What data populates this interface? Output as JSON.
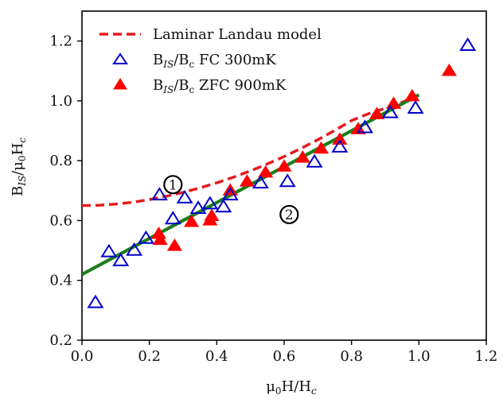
{
  "chart_data": {
    "type": "scatter",
    "xlabel": "μ₀H/H꜀",
    "ylabel": "B_IS/μ₀H꜀",
    "xlim": [
      0.0,
      1.2
    ],
    "ylim": [
      0.2,
      1.3
    ],
    "x_ticks": [
      "0.0",
      "0.2",
      "0.4",
      "0.6",
      "0.8",
      "1.0",
      "1.2"
    ],
    "y_ticks": [
      "0.2",
      "0.4",
      "0.6",
      "0.8",
      "1.0",
      "1.2"
    ],
    "grid": false,
    "legend_position": "top-left",
    "colors": {
      "model": "#e41a1c",
      "fc": "#0000cc",
      "zfc": "#ff0000",
      "fit": "#1a7f1a"
    },
    "series": [
      {
        "name": "Laminar Landau model",
        "kind": "dashed-line",
        "x": [
          0.0,
          0.05,
          0.1,
          0.15,
          0.2,
          0.25,
          0.3,
          0.35,
          0.4,
          0.45,
          0.5,
          0.55,
          0.6,
          0.65,
          0.7,
          0.75,
          0.8,
          0.85,
          0.9,
          0.95,
          1.0
        ],
        "y": [
          0.65,
          0.651,
          0.655,
          0.661,
          0.67,
          0.681,
          0.694,
          0.709,
          0.726,
          0.745,
          0.766,
          0.789,
          0.814,
          0.841,
          0.87,
          0.901,
          0.934,
          0.957,
          0.975,
          0.995,
          1.02
        ]
      },
      {
        "name": "B_IS/B_c FC 300mK",
        "kind": "open-triangle",
        "x": [
          0.04,
          0.08,
          0.115,
          0.155,
          0.19,
          0.23,
          0.27,
          0.305,
          0.345,
          0.38,
          0.42,
          0.44,
          0.53,
          0.61,
          0.69,
          0.765,
          0.84,
          0.915,
          0.99,
          1.145
        ],
        "y": [
          0.325,
          0.495,
          0.465,
          0.5,
          0.54,
          0.685,
          0.605,
          0.675,
          0.64,
          0.655,
          0.645,
          0.685,
          0.725,
          0.73,
          0.795,
          0.845,
          0.91,
          0.96,
          0.975,
          1.185
        ]
      },
      {
        "name": "B_IS/B_c ZFC 900mK",
        "kind": "filled-triangle",
        "x": [
          0.228,
          0.232,
          0.275,
          0.325,
          0.38,
          0.385,
          0.44,
          0.49,
          0.545,
          0.6,
          0.655,
          0.71,
          0.765,
          0.82,
          0.875,
          0.925,
          0.98,
          1.09
        ],
        "y": [
          0.555,
          0.535,
          0.515,
          0.595,
          0.6,
          0.615,
          0.7,
          0.73,
          0.76,
          0.78,
          0.81,
          0.84,
          0.87,
          0.905,
          0.955,
          0.99,
          1.015,
          1.1
        ]
      },
      {
        "kind": "solid-line",
        "x": [
          0.0,
          1.0
        ],
        "y": [
          0.42,
          1.02
        ]
      }
    ],
    "legend": [
      {
        "label": "Laminar Landau model",
        "series": 0
      },
      {
        "label": "B_IS/B_c FC 300mK",
        "series": 1
      },
      {
        "label": "B_IS/B_c ZFC 900mK",
        "series": 2
      }
    ],
    "annotations": [
      {
        "text": "1",
        "x": 0.27,
        "y": 0.72
      },
      {
        "text": "2",
        "x": 0.615,
        "y": 0.62
      }
    ]
  },
  "labels": {
    "x_axis_main": "μ",
    "x_axis_sub0": "0",
    "x_axis_rest": "H/H",
    "x_axis_subc": "c",
    "y_axis_main": "B",
    "y_axis_subIS": "IS",
    "y_axis_slash": "/μ",
    "y_axis_sub0": "0",
    "y_axis_H": "H",
    "y_axis_subc": "c",
    "legend_model": "Laminar Landau model",
    "legend_fc_b": "B",
    "legend_fc_is": "IS",
    "legend_fc_slash": "/B",
    "legend_fc_c": "c",
    "legend_fc_rest": " FC 300mK",
    "legend_zfc_b": "B",
    "legend_zfc_is": "IS",
    "legend_zfc_slash": "/B",
    "legend_zfc_c": "c",
    "legend_zfc_rest": " ZFC 900mK"
  }
}
